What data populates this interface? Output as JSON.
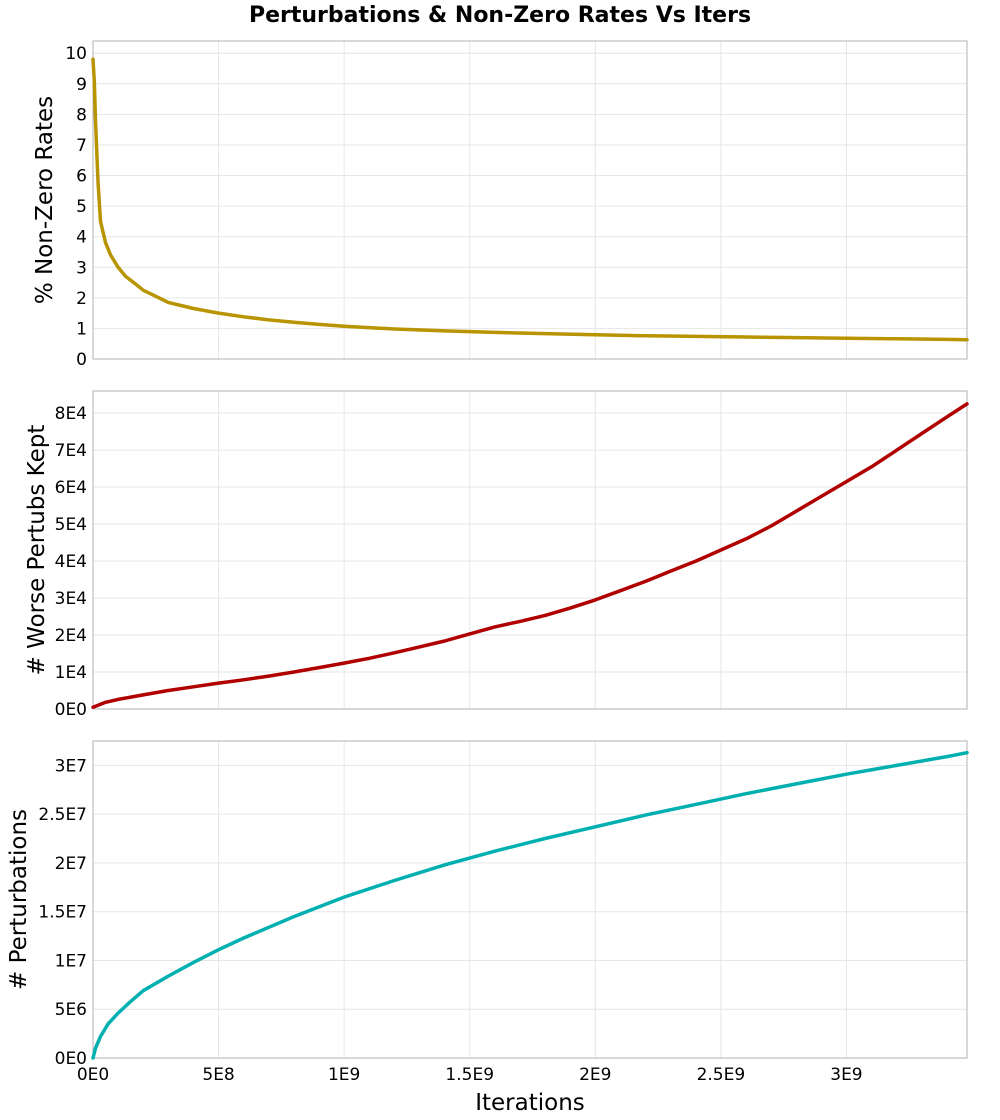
{
  "chart_data": {
    "type": "line",
    "title": "Perturbations & Non-Zero Rates Vs Iters",
    "xlabel": "Iterations",
    "xlim": [
      0,
      3480000000
    ],
    "x_ticks": [
      {
        "value": 0,
        "label": "0E0"
      },
      {
        "value": 500000000,
        "label": "5E8"
      },
      {
        "value": 1000000000,
        "label": "1E9"
      },
      {
        "value": 1500000000,
        "label": "1.5E9"
      },
      {
        "value": 2000000000,
        "label": "2E9"
      },
      {
        "value": 2500000000,
        "label": "2.5E9"
      },
      {
        "value": 3000000000,
        "label": "3E9"
      }
    ],
    "grid": true,
    "panels": [
      {
        "ylabel": "% Non-Zero Rates",
        "color": "#b89400",
        "ylim": [
          0,
          10.4
        ],
        "y_ticks": [
          {
            "value": 0,
            "label": "0"
          },
          {
            "value": 1,
            "label": "1"
          },
          {
            "value": 2,
            "label": "2"
          },
          {
            "value": 3,
            "label": "3"
          },
          {
            "value": 4,
            "label": "4"
          },
          {
            "value": 5,
            "label": "5"
          },
          {
            "value": 6,
            "label": "6"
          },
          {
            "value": 7,
            "label": "7"
          },
          {
            "value": 8,
            "label": "8"
          },
          {
            "value": 9,
            "label": "9"
          },
          {
            "value": 10,
            "label": "10"
          }
        ],
        "x": [
          0,
          5000000,
          10000000,
          20000000,
          30000000,
          50000000,
          70000000,
          100000000,
          130000000,
          170000000,
          200000000,
          250000000,
          300000000,
          350000000,
          400000000,
          500000000,
          600000000,
          700000000,
          800000000,
          900000000,
          1000000000,
          1200000000,
          1400000000,
          1600000000,
          1800000000,
          2000000000,
          2200000000,
          2400000000,
          2600000000,
          2800000000,
          3000000000,
          3200000000,
          3400000000,
          3480000000
        ],
        "y": [
          9.8,
          9.1,
          7.8,
          5.8,
          4.5,
          3.8,
          3.4,
          3.0,
          2.7,
          2.45,
          2.25,
          2.05,
          1.85,
          1.75,
          1.65,
          1.5,
          1.38,
          1.28,
          1.2,
          1.13,
          1.07,
          0.98,
          0.92,
          0.87,
          0.83,
          0.79,
          0.76,
          0.74,
          0.72,
          0.7,
          0.68,
          0.66,
          0.64,
          0.63
        ]
      },
      {
        "ylabel": "# Worse Pertubs Kept",
        "color": "#b00000",
        "ylim": [
          0,
          86000
        ],
        "y_ticks": [
          {
            "value": 0,
            "label": "0E0"
          },
          {
            "value": 10000,
            "label": "1E4"
          },
          {
            "value": 20000,
            "label": "2E4"
          },
          {
            "value": 30000,
            "label": "3E4"
          },
          {
            "value": 40000,
            "label": "4E4"
          },
          {
            "value": 50000,
            "label": "5E4"
          },
          {
            "value": 60000,
            "label": "6E4"
          },
          {
            "value": 70000,
            "label": "7E4"
          },
          {
            "value": 80000,
            "label": "8E4"
          }
        ],
        "x": [
          0,
          50000000,
          100000000,
          200000000,
          300000000,
          400000000,
          500000000,
          600000000,
          700000000,
          800000000,
          900000000,
          1000000000,
          1100000000,
          1200000000,
          1300000000,
          1400000000,
          1500000000,
          1600000000,
          1700000000,
          1800000000,
          1900000000,
          2000000000,
          2100000000,
          2200000000,
          2300000000,
          2400000000,
          2500000000,
          2600000000,
          2700000000,
          2800000000,
          2900000000,
          3000000000,
          3100000000,
          3200000000,
          3300000000,
          3400000000,
          3480000000
        ],
        "y": [
          500,
          1800,
          2600,
          3800,
          5000,
          6000,
          7000,
          7900,
          8900,
          10000,
          11200,
          12400,
          13700,
          15200,
          16800,
          18400,
          20300,
          22200,
          23700,
          25300,
          27300,
          29500,
          32000,
          34500,
          37300,
          40000,
          43000,
          46000,
          49500,
          53500,
          57500,
          61500,
          65500,
          70000,
          74500,
          79000,
          82500
        ]
      },
      {
        "ylabel": "# Perturbations",
        "color": "#00b0b0",
        "ylim": [
          0,
          32500000
        ],
        "y_ticks": [
          {
            "value": 0,
            "label": "0E0"
          },
          {
            "value": 5000000,
            "label": "5E6"
          },
          {
            "value": 10000000,
            "label": "1E7"
          },
          {
            "value": 15000000,
            "label": "1.5E7"
          },
          {
            "value": 20000000,
            "label": "2E7"
          },
          {
            "value": 25000000,
            "label": "2.5E7"
          },
          {
            "value": 30000000,
            "label": "3E7"
          }
        ],
        "x": [
          0,
          10000000,
          30000000,
          60000000,
          100000000,
          150000000,
          200000000,
          300000000,
          400000000,
          500000000,
          600000000,
          800000000,
          1000000000,
          1200000000,
          1400000000,
          1600000000,
          1800000000,
          2000000000,
          2200000000,
          2400000000,
          2600000000,
          2800000000,
          3000000000,
          3200000000,
          3400000000,
          3480000000
        ],
        "y": [
          0,
          1000000,
          2200000,
          3500000,
          4600000,
          5800000,
          6900000,
          8400000,
          9800000,
          11100000,
          12300000,
          14500000,
          16500000,
          18200000,
          19800000,
          21200000,
          22500000,
          23700000,
          24900000,
          26000000,
          27100000,
          28100000,
          29100000,
          30000000,
          30900000,
          31300000
        ]
      }
    ]
  }
}
